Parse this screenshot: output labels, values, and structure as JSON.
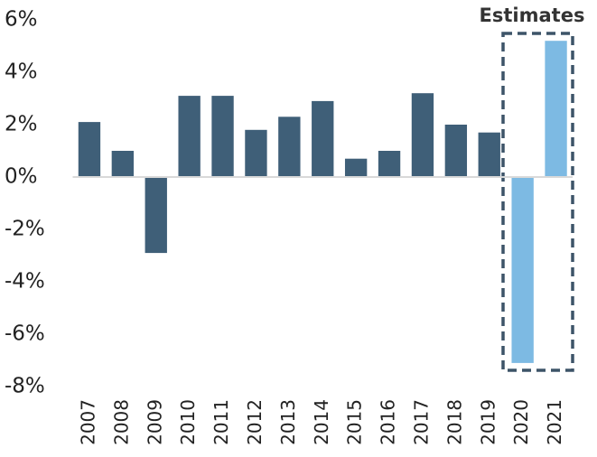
{
  "chart_data": {
    "type": "bar",
    "annotation": "Estimates",
    "categories": [
      "2007",
      "2008",
      "2009",
      "2010",
      "2011",
      "2012",
      "2013",
      "2014",
      "2015",
      "2016",
      "2017",
      "2018",
      "2019",
      "2020",
      "2021"
    ],
    "values": [
      2.1,
      1.0,
      -2.9,
      3.1,
      3.1,
      1.8,
      2.3,
      2.9,
      0.7,
      1.0,
      3.2,
      2.0,
      1.7,
      -7.1,
      5.2
    ],
    "colors": [
      "#3f5f78",
      "#3f5f78",
      "#3f5f78",
      "#3f5f78",
      "#3f5f78",
      "#3f5f78",
      "#3f5f78",
      "#3f5f78",
      "#3f5f78",
      "#3f5f78",
      "#3f5f78",
      "#3f5f78",
      "#3f5f78",
      "#7dbae3",
      "#7dbae3"
    ],
    "ylim": [
      -8,
      6
    ],
    "yticks": [
      {
        "value": 6,
        "label": "6%"
      },
      {
        "value": 4,
        "label": "4%"
      },
      {
        "value": 2,
        "label": "2%"
      },
      {
        "value": 0,
        "label": "0%"
      },
      {
        "value": -2,
        "label": "-2%"
      },
      {
        "value": -4,
        "label": "-4%"
      },
      {
        "value": -6,
        "label": "-6%"
      },
      {
        "value": -8,
        "label": "-8%"
      }
    ],
    "grid": false
  }
}
